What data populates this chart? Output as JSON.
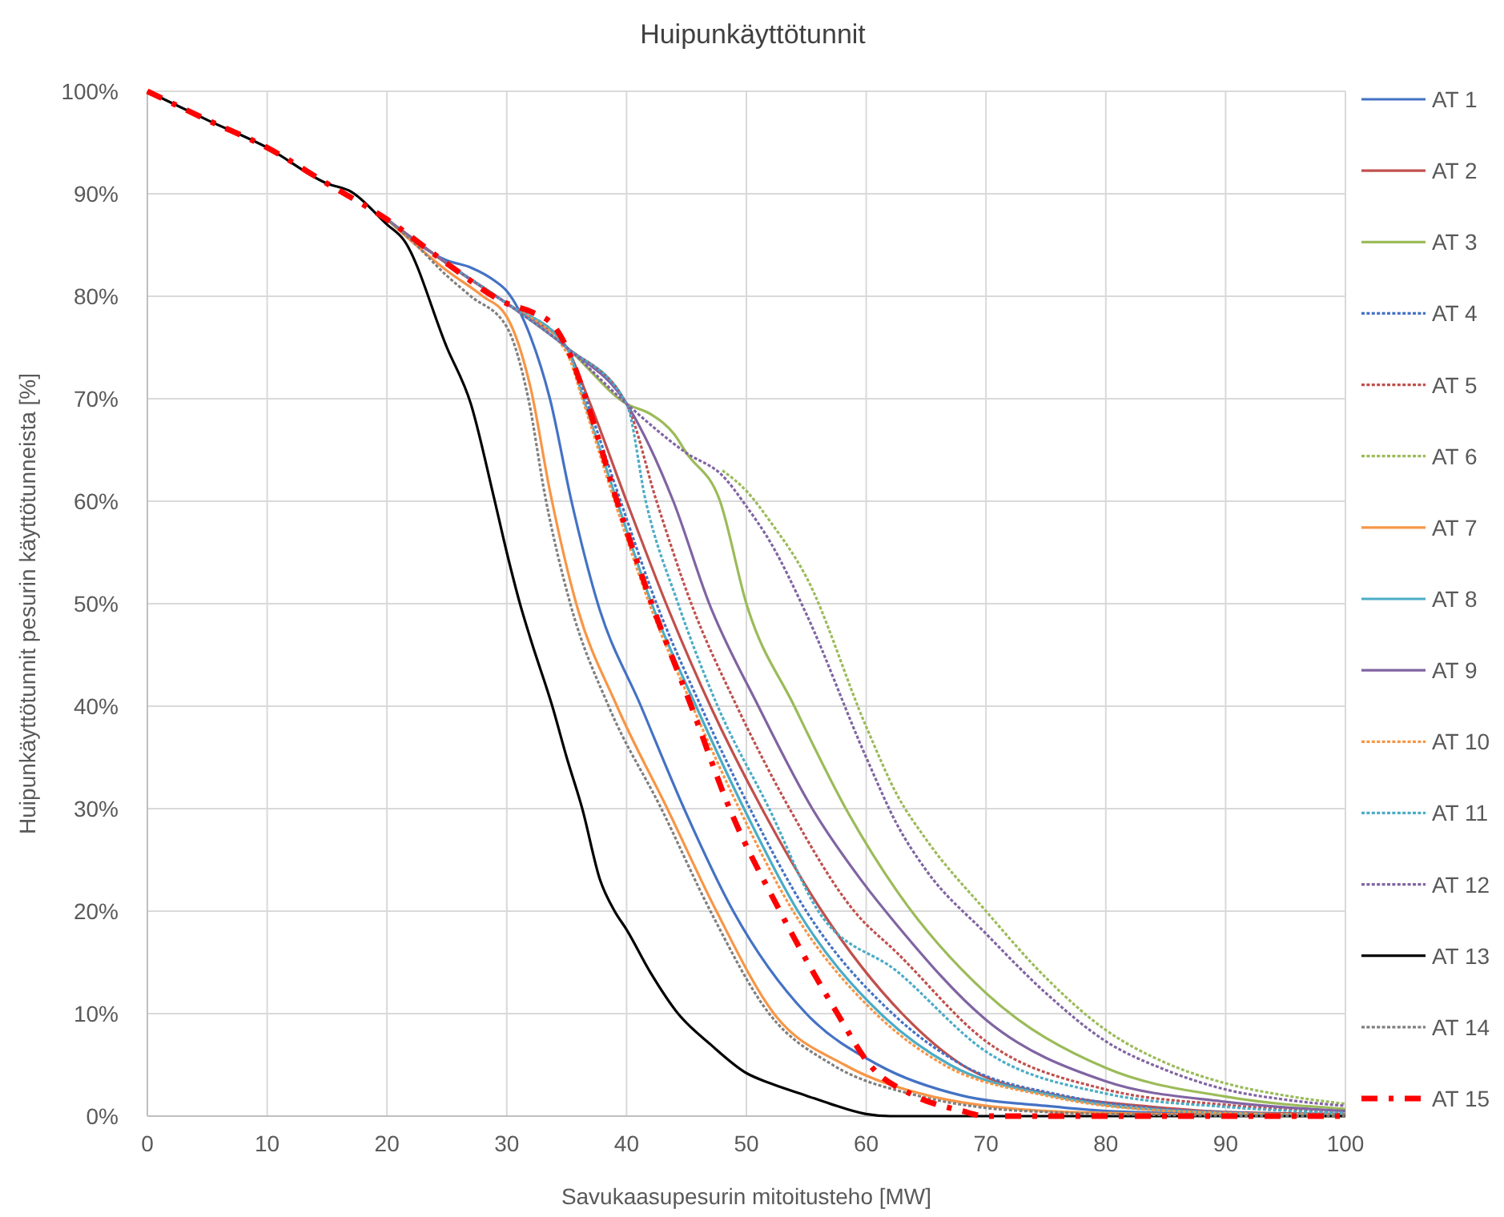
{
  "chart_data": {
    "type": "line",
    "title": "Huipunkäyttötunnit",
    "xlabel": "Savukaasupesurin mitoitusteho [MW]",
    "ylabel": "Huipunkäyttötunnit pesurin käyttötunneista [%]",
    "xlim": [
      0,
      100
    ],
    "xticks": [
      0,
      10,
      20,
      30,
      40,
      50,
      60,
      70,
      80,
      90,
      100
    ],
    "ylim": [
      0,
      100
    ],
    "yticks": [
      {
        "value": 0,
        "label": "0%"
      },
      {
        "value": 10,
        "label": "10%"
      },
      {
        "value": 20,
        "label": "20%"
      },
      {
        "value": 30,
        "label": "30%"
      },
      {
        "value": 40,
        "label": "40%"
      },
      {
        "value": 50,
        "label": "50%"
      },
      {
        "value": 60,
        "label": "60%"
      },
      {
        "value": 70,
        "label": "70%"
      },
      {
        "value": 80,
        "label": "80%"
      },
      {
        "value": 90,
        "label": "90%"
      },
      {
        "value": 100,
        "label": "100%"
      }
    ],
    "grid": true,
    "legend": "right",
    "marker": "none",
    "series": [
      {
        "name": "AT 1",
        "color": "#4472c4",
        "line_style": "solid",
        "x": [
          20,
          25,
          27,
          29,
          30,
          32,
          33.6,
          35.4,
          37.6,
          41.2,
          44.8,
          48.9,
          55,
          61,
          68,
          75,
          80,
          90,
          100
        ],
        "values": [
          87.5,
          83.5,
          82.8,
          81.5,
          80.5,
          76,
          70,
          60,
          50,
          40,
          30,
          20,
          10,
          5,
          2,
          1,
          0.5,
          0.2,
          0.1
        ]
      },
      {
        "name": "AT 2",
        "color": "#c0504d",
        "line_style": "solid",
        "x": [
          20,
          25,
          30,
          32,
          35,
          36.8,
          40,
          43.3,
          47,
          51.3,
          56.3,
          63,
          68,
          76,
          83,
          90,
          100
        ],
        "values": [
          87.5,
          83.2,
          79.3,
          77.8,
          75,
          70,
          60,
          50,
          40,
          30,
          20,
          10,
          5,
          2,
          1,
          0.4,
          0.2
        ]
      },
      {
        "name": "AT 3",
        "color": "#9bbb59",
        "line_style": "solid",
        "x": [
          20,
          25,
          30,
          35,
          40,
          42,
          44,
          45,
          47.8,
          50,
          54,
          58.3,
          62.6,
          70,
          80,
          90,
          100
        ],
        "values": [
          87.5,
          83.2,
          79.3,
          75,
          69.5,
          68.5,
          66.5,
          64.7,
          60,
          50,
          40,
          30,
          21.9,
          12,
          4.7,
          1.9,
          0.7
        ]
      },
      {
        "name": "AT 4",
        "color": "#4472c4",
        "line_style": "dashed",
        "x": [
          25,
          30,
          35,
          36.6,
          39.5,
          42.5,
          46.2,
          50.3,
          55,
          62.2,
          68,
          76.5,
          82,
          92,
          100
        ],
        "values": [
          83.2,
          79.3,
          75,
          70,
          60,
          50,
          40,
          30,
          20,
          10,
          5,
          2,
          1,
          0.3,
          0.1
        ]
      },
      {
        "name": "AT 5",
        "color": "#c0504d",
        "line_style": "dashed",
        "x": [
          20,
          25,
          30,
          35,
          40,
          42.5,
          45.4,
          49.2,
          53.6,
          59,
          62.6,
          70,
          80,
          90,
          100
        ],
        "values": [
          87.5,
          83.2,
          79.3,
          75,
          69.5,
          60,
          50,
          40,
          30,
          20,
          15.9,
          7.3,
          2.6,
          1.1,
          0.4
        ]
      },
      {
        "name": "AT 6",
        "color": "#9bbb59",
        "line_style": "dashed",
        "x": [
          48,
          50,
          52,
          55,
          60,
          62.6,
          65,
          70,
          75,
          80,
          85,
          90,
          95,
          100
        ],
        "values": [
          63,
          61,
          58,
          52.6,
          38,
          31.3,
          27,
          20,
          13.5,
          8.4,
          5.2,
          3.2,
          2,
          1.2
        ]
      },
      {
        "name": "AT 7",
        "color": "#f79646",
        "line_style": "solid",
        "x": [
          20,
          25,
          28,
          30,
          32,
          33.6,
          35.8,
          39.2,
          43.4,
          47.5,
          52.3,
          58.2,
          65.2,
          70,
          75,
          80,
          100
        ],
        "values": [
          87.5,
          82.5,
          80,
          78,
          71,
          61,
          50,
          40,
          30,
          20,
          10,
          5,
          2,
          1,
          0.5,
          0.3,
          0
        ]
      },
      {
        "name": "AT 8",
        "color": "#4bacc6",
        "line_style": "solid",
        "x": [
          20,
          25,
          30,
          35,
          36.4,
          39.2,
          42.1,
          45.8,
          49.8,
          54.3,
          61.2,
          67,
          75.5,
          80.5,
          90,
          100
        ],
        "values": [
          87.5,
          83.2,
          79.3,
          75,
          70,
          60,
          50,
          40,
          30,
          20,
          10,
          5,
          2,
          1,
          0.3,
          0.1
        ]
      },
      {
        "name": "AT 9",
        "color": "#8064a2",
        "line_style": "solid",
        "x": [
          20,
          25,
          30,
          35,
          40,
          43.9,
          46.9,
          51,
          55.5,
          59.6,
          62.6,
          70,
          80,
          90,
          100
        ],
        "values": [
          87.5,
          83.2,
          79.3,
          75,
          69.5,
          60,
          50,
          40,
          30,
          23,
          18.6,
          9.4,
          3.4,
          1.4,
          0.5
        ]
      },
      {
        "name": "AT 10",
        "color": "#f79646",
        "line_style": "dashed",
        "x": [
          20,
          25,
          30,
          35,
          36.3,
          39,
          41.9,
          45.5,
          49.4,
          53.9,
          60.8,
          66.5,
          75,
          80,
          90,
          100
        ],
        "values": [
          87.5,
          83.2,
          79.3,
          74.5,
          70,
          60,
          50,
          40,
          30,
          20,
          10,
          5,
          2,
          1,
          0.3,
          0.1
        ]
      },
      {
        "name": "AT 11",
        "color": "#4bacc6",
        "line_style": "dashed",
        "x": [
          25,
          30,
          35,
          40,
          41.6,
          44.3,
          47.6,
          51.9,
          56,
          62.6,
          70,
          80,
          90,
          100
        ],
        "values": [
          83.2,
          79.3,
          75,
          69.5,
          60,
          50,
          40,
          30,
          20,
          14.1,
          6.3,
          2.2,
          0.9,
          0.3
        ]
      },
      {
        "name": "AT 12",
        "color": "#8064a2",
        "line_style": "dashed",
        "x": [
          20,
          25,
          30,
          35,
          40,
          45,
          48,
          50,
          52,
          55,
          60,
          62.6,
          65,
          70,
          75,
          80,
          85,
          90,
          95,
          100
        ],
        "values": [
          87.5,
          83.2,
          79.3,
          75,
          69.5,
          64.7,
          62.5,
          59.5,
          56,
          49,
          35,
          28.4,
          24,
          17.8,
          12,
          7.3,
          4.5,
          2.6,
          1.6,
          1.0
        ]
      },
      {
        "name": "AT 13",
        "color": "#000000",
        "line_style": "solid",
        "x": [
          0,
          5,
          10,
          15,
          17,
          20,
          21.4,
          25,
          27,
          28.9,
          30,
          31.1,
          32,
          33.8,
          35,
          36.3,
          37.8,
          39,
          40,
          42,
          44.3,
          47,
          50,
          52,
          55,
          57,
          60,
          62,
          70,
          80,
          90,
          100
        ],
        "values": [
          100,
          97.2,
          94.5,
          91,
          90.2,
          87,
          85.5,
          75,
          69.5,
          60.5,
          55,
          50,
          46.5,
          40,
          35,
          30,
          23,
          20,
          18.2,
          14,
          10,
          7,
          4.2,
          3.2,
          2,
          1.2,
          0.2,
          0,
          0,
          0,
          0,
          0
        ]
      },
      {
        "name": "AT 14",
        "color": "#7f7f7f",
        "line_style": "dashed",
        "x": [
          20,
          22,
          25,
          27,
          30,
          31.8,
          33.2,
          35.3,
          38.5,
          42.9,
          47,
          51.9,
          57.2,
          64.3,
          70,
          75,
          80,
          100
        ],
        "values": [
          87.5,
          85.5,
          82,
          80,
          77,
          70,
          60.5,
          50,
          40,
          30,
          20,
          10,
          5,
          2,
          0.8,
          0.4,
          0.2,
          0
        ]
      },
      {
        "name": "AT 15",
        "color": "#ff0000",
        "line_style": "dashdot",
        "x": [
          0,
          5,
          10,
          15,
          20,
          25,
          30,
          32,
          34,
          35,
          36.6,
          39.2,
          42.1,
          45.4,
          48.6,
          52.8,
          57.6,
          60.3,
          64,
          68,
          70,
          80,
          90,
          100
        ],
        "values": [
          100,
          97.2,
          94.5,
          91,
          87.5,
          83.2,
          79.3,
          78.5,
          77,
          75,
          70,
          60,
          50,
          40,
          30,
          20,
          10,
          5,
          2,
          0.5,
          0,
          0,
          0,
          0
        ]
      }
    ]
  }
}
